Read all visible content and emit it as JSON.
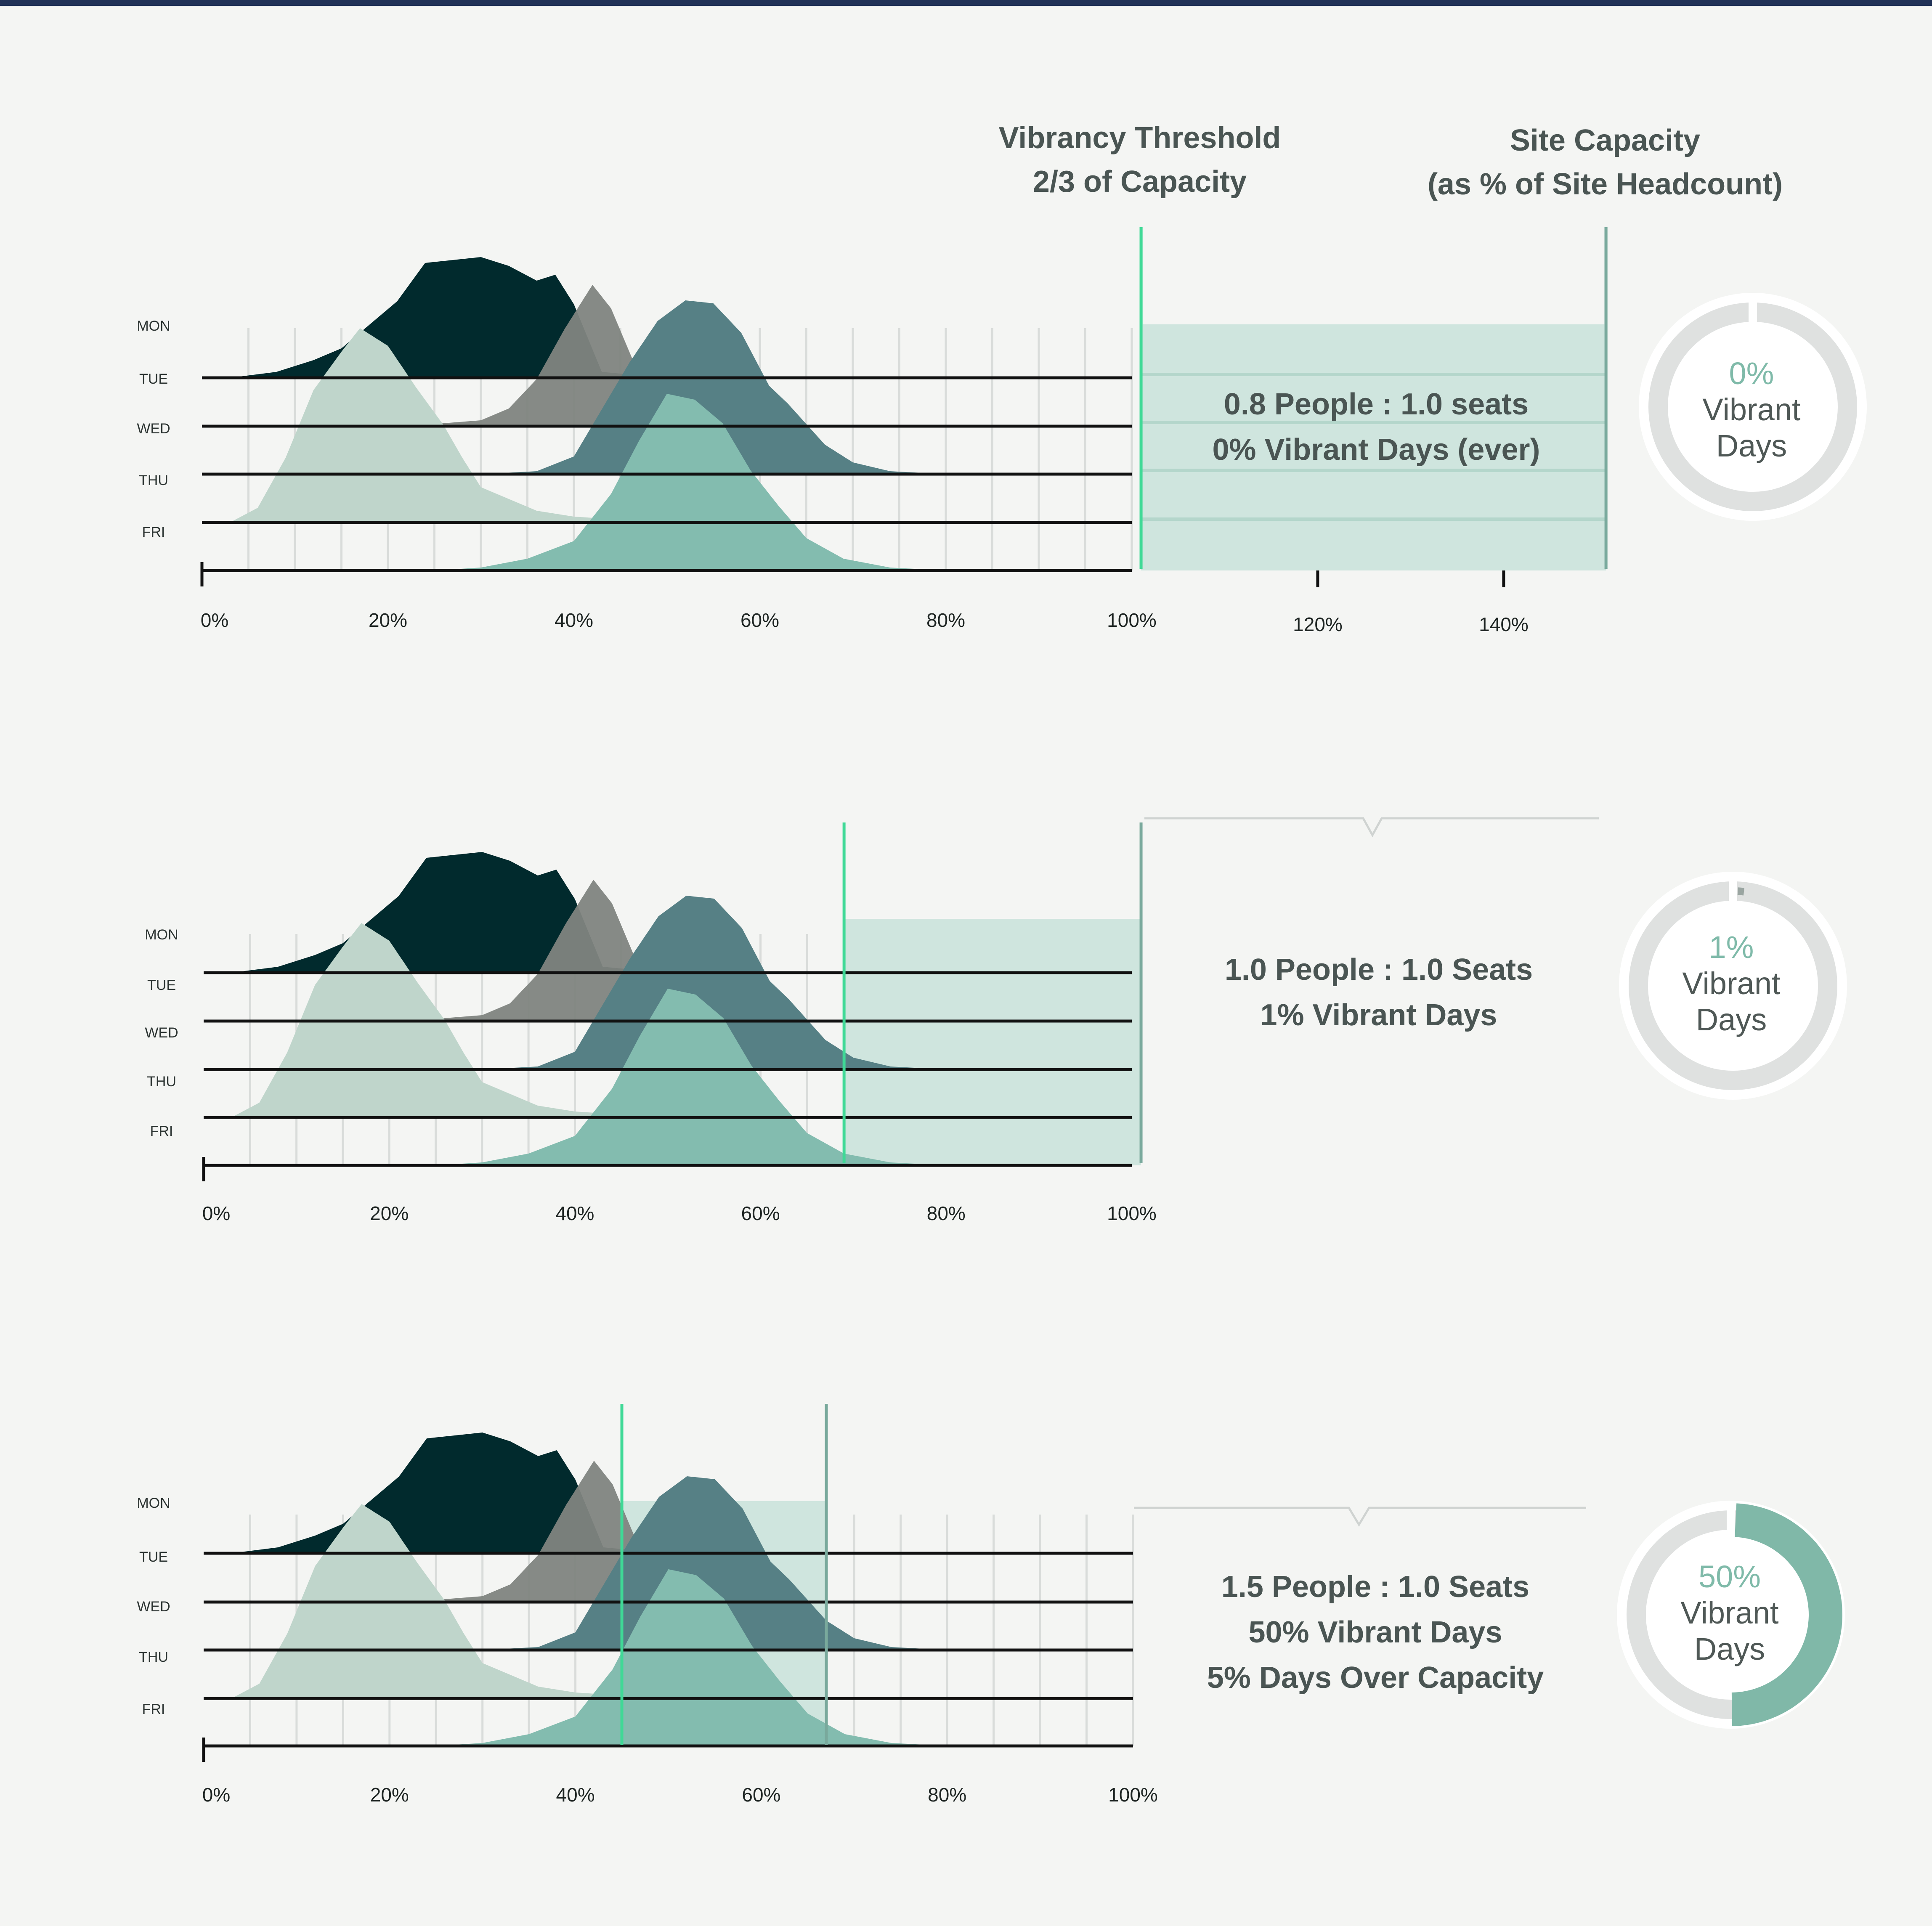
{
  "colors": {
    "page_background": "#f4f5f3",
    "top_bar": "#213257",
    "mon": "#012a2d",
    "tue": "#7f8480",
    "wed": "#568085",
    "thu": "#bfd5cb",
    "fri": "#83bcaf",
    "vibrancy_line": "#3fd996",
    "capacity_line": "#79a99c",
    "shaded_band": "#cfe5de",
    "donut_track": "#dfe1e0",
    "donut_fill": "#80b8a8",
    "text": "#4a5553"
  },
  "headers": {
    "vibrancy": [
      "Vibrancy Threshold",
      "2/3 of Capacity"
    ],
    "capacity": [
      "Site Capacity",
      "(as % of Site Headcount)"
    ]
  },
  "days": [
    "MON",
    "TUE",
    "WED",
    "THU",
    "FRI"
  ],
  "chart_data": [
    {
      "type": "area",
      "chart_kind": "ridgeline",
      "x_unit": "% of site headcount in office",
      "x_ticks": [
        "0%",
        "20%",
        "40%",
        "60%",
        "80%",
        "100%",
        "120%",
        "140%"
      ],
      "xlim": [
        0,
        150
      ],
      "vibrancy_threshold": 101,
      "site_capacity": 151,
      "series": [
        {
          "name": "MON",
          "x": [
            3,
            8,
            12,
            15,
            18,
            21,
            24,
            27,
            30,
            33,
            36,
            38,
            40,
            43,
            50,
            70,
            100
          ],
          "y": [
            0,
            0.02,
            0.06,
            0.1,
            0.18,
            0.26,
            0.39,
            0.4,
            0.41,
            0.38,
            0.33,
            0.35,
            0.25,
            0.02,
            0,
            0,
            0
          ]
        },
        {
          "name": "TUE",
          "x": [
            22,
            26,
            30,
            33,
            36,
            39,
            42,
            44,
            46,
            48,
            51,
            54,
            58,
            62,
            66,
            70,
            100
          ],
          "y": [
            0,
            0.01,
            0.02,
            0.06,
            0.16,
            0.33,
            0.48,
            0.4,
            0.25,
            0.1,
            0.03,
            0.01,
            0,
            0,
            0,
            0,
            0
          ]
        },
        {
          "name": "WED",
          "x": [
            30,
            36,
            40,
            43,
            46,
            49,
            52,
            55,
            58,
            61,
            63,
            65,
            67,
            70,
            74,
            80,
            100
          ],
          "y": [
            0,
            0.01,
            0.06,
            0.22,
            0.38,
            0.52,
            0.59,
            0.58,
            0.48,
            0.3,
            0.24,
            0.17,
            0.1,
            0.04,
            0.01,
            0,
            0
          ]
        },
        {
          "name": "THU",
          "x": [
            3,
            6,
            9,
            12,
            15,
            17,
            20,
            23,
            26,
            28,
            30,
            33,
            36,
            40,
            45,
            50,
            100
          ],
          "y": [
            0,
            0.05,
            0.22,
            0.45,
            0.58,
            0.66,
            0.6,
            0.46,
            0.33,
            0.22,
            0.12,
            0.08,
            0.04,
            0.02,
            0.01,
            0,
            0
          ]
        },
        {
          "name": "FRI",
          "x": [
            25,
            30,
            35,
            40,
            44,
            47,
            50,
            53,
            56,
            59,
            62,
            65,
            69,
            74,
            80,
            90,
            100
          ],
          "y": [
            0,
            0.01,
            0.04,
            0.1,
            0.26,
            0.44,
            0.6,
            0.58,
            0.5,
            0.34,
            0.22,
            0.11,
            0.04,
            0.01,
            0,
            0,
            0
          ]
        }
      ],
      "annotation": [
        "0.8 People : 1.0 seats",
        "0% Vibrant Days (ever)"
      ],
      "vibrant_days_pct": 0
    },
    {
      "type": "area",
      "chart_kind": "ridgeline",
      "x_ticks": [
        "0%",
        "20%",
        "40%",
        "60%",
        "80%",
        "100%"
      ],
      "xlim": [
        0,
        100
      ],
      "vibrancy_threshold": 69,
      "site_capacity": 101,
      "series_same_as_first_panel": true,
      "annotation": [
        "1.0 People : 1.0 Seats",
        "1% Vibrant Days"
      ],
      "vibrant_days_pct": 1
    },
    {
      "type": "area",
      "chart_kind": "ridgeline",
      "x_ticks": [
        "0%",
        "20%",
        "40%",
        "60%",
        "80%",
        "100%"
      ],
      "xlim": [
        0,
        100
      ],
      "vibrancy_threshold": 45,
      "site_capacity": 67,
      "series_same_as_first_panel": true,
      "annotation": [
        "1.5 People : 1.0 Seats",
        "50% Vibrant Days",
        "5% Days Over Capacity"
      ],
      "vibrant_days_pct": 50
    }
  ],
  "donut_labels": [
    {
      "pct": "0%",
      "line1": "Vibrant",
      "line2": "Days"
    },
    {
      "pct": "1%",
      "line1": "Vibrant",
      "line2": "Days"
    },
    {
      "pct": "50%",
      "line1": "Vibrant",
      "line2": "Days"
    }
  ]
}
